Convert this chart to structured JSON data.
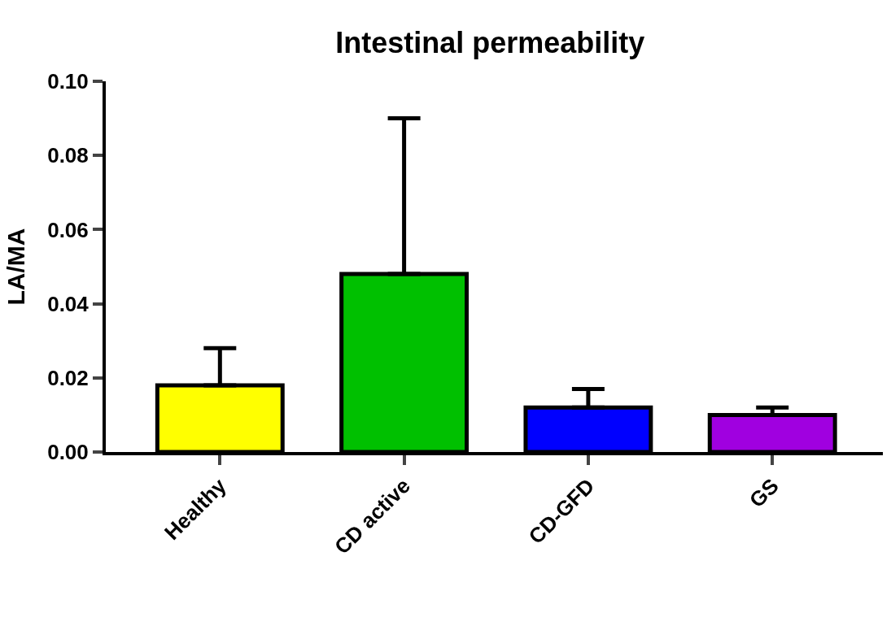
{
  "chart_data": {
    "type": "bar",
    "title": "Intestinal permeability",
    "ylabel": "LA/MA",
    "categories": [
      "Healthy",
      "CD active",
      "CD-GFD",
      "GS"
    ],
    "values": [
      0.018,
      0.048,
      0.012,
      0.01
    ],
    "errors": [
      [
        0.018,
        0.028
      ],
      [
        0.048,
        0.09
      ],
      [
        0.012,
        0.017
      ],
      [
        0.01,
        0.012
      ]
    ],
    "colors": [
      "#ffff00",
      "#00c000",
      "#0000ff",
      "#a000e0"
    ],
    "ylim": [
      0,
      0.1
    ],
    "yticks": [
      {
        "value": 0,
        "label": "0.00"
      },
      {
        "value": 0.02,
        "label": "0.02"
      },
      {
        "value": 0.04,
        "label": "0.04"
      },
      {
        "value": 0.06,
        "label": "0.06"
      },
      {
        "value": 0.08,
        "label": "0.08"
      },
      {
        "value": 0.1,
        "label": "0.10"
      }
    ],
    "legend": false
  }
}
